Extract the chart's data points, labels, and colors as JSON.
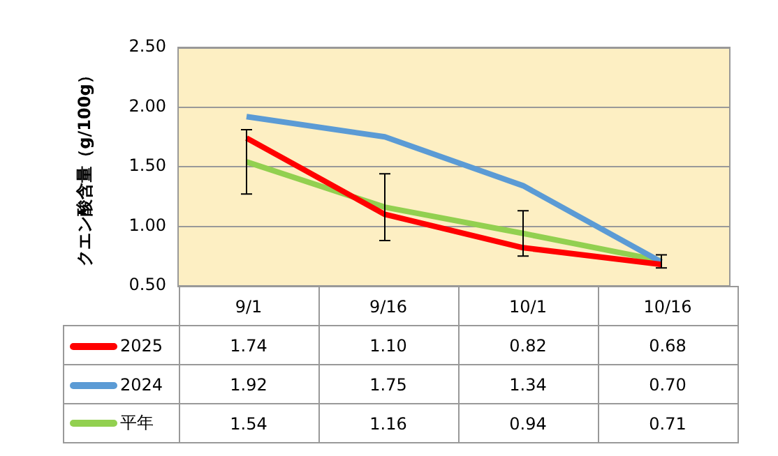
{
  "chart_data": {
    "type": "line",
    "ylabel": "クエン酸含量（g/100g）",
    "categories": [
      "9/1",
      "9/16",
      "10/1",
      "10/16"
    ],
    "series": [
      {
        "name": "2025",
        "color": "#ff0000",
        "values": [
          1.74,
          1.1,
          0.82,
          0.68
        ],
        "value_labels": [
          "1.74",
          "1.10",
          "0.82",
          "0.68"
        ]
      },
      {
        "name": "2024",
        "color": "#5b9bd5",
        "values": [
          1.92,
          1.75,
          1.34,
          0.7
        ],
        "value_labels": [
          "1.92",
          "1.75",
          "1.34",
          "0.70"
        ]
      },
      {
        "name": "平年",
        "color": "#92d050",
        "values": [
          1.54,
          1.16,
          0.94,
          0.71
        ],
        "value_labels": [
          "1.54",
          "1.16",
          "0.94",
          "0.71"
        ],
        "errors": [
          [
            1.27,
            1.81
          ],
          [
            0.88,
            1.44
          ],
          [
            0.75,
            1.13
          ],
          [
            0.65,
            0.76
          ]
        ]
      }
    ],
    "ylim": [
      0.5,
      2.5
    ],
    "yticks": [
      {
        "value": 0.5,
        "label": "0.50"
      },
      {
        "value": 1,
        "label": "1.00"
      },
      {
        "value": 1.5,
        "label": "1.50"
      },
      {
        "value": 2,
        "label": "2.00"
      },
      {
        "value": 2.5,
        "label": "2.50"
      }
    ],
    "grid": "y",
    "legend": "bottom",
    "marker": "none",
    "line_style": "solid"
  }
}
